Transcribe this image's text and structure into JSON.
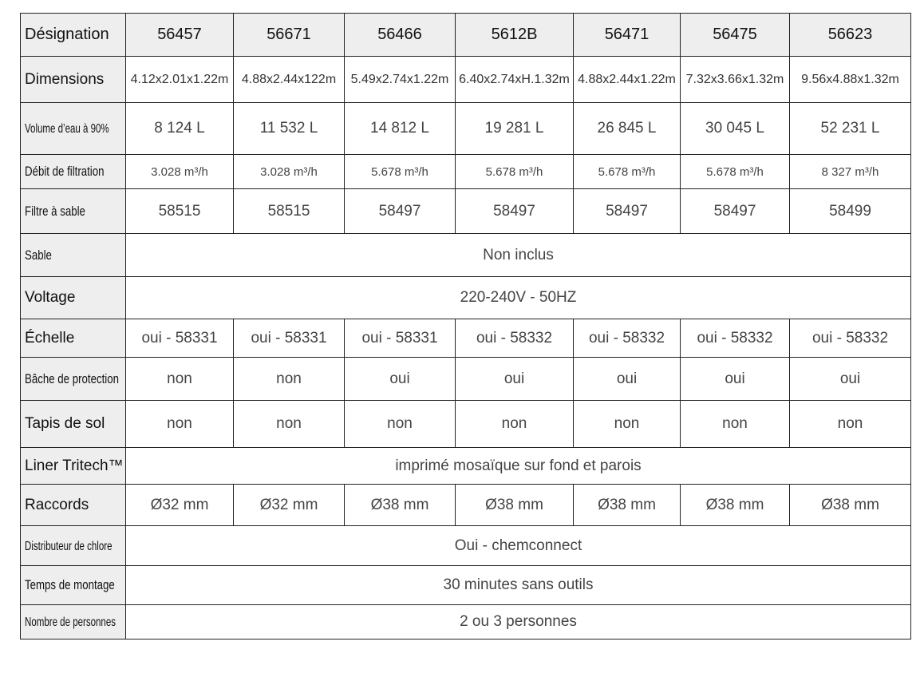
{
  "table": {
    "header_label": "Désignation",
    "models": [
      "56457",
      "56671",
      "56466",
      "5612B",
      "56471",
      "56475",
      "56623"
    ],
    "rows": [
      {
        "label": "Dimensions",
        "values": [
          "4.12x2.01x1.22m",
          "4.88x2.44x122m",
          "5.49x2.74x1.22m",
          "6.40x2.74xH.1.32m",
          "4.88x2.44x1.22m",
          "7.32x3.66x1.32m",
          "9.56x4.88x1.32m"
        ]
      },
      {
        "label": "Volume d’eau à 90%",
        "values": [
          "8 124 L",
          "11 532 L",
          "14 812 L",
          "19 281 L",
          "26 845 L",
          "30 045 L",
          "52 231 L"
        ]
      },
      {
        "label": "Débit de filtration",
        "values": [
          "3.028 m³/h",
          "3.028 m³/h",
          "5.678 m³/h",
          "5.678 m³/h",
          "5.678 m³/h",
          "5.678 m³/h",
          "8 327 m³/h"
        ]
      },
      {
        "label": "Filtre à sable",
        "values": [
          "58515",
          "58515",
          "58497",
          "58497",
          "58497",
          "58497",
          "58499"
        ]
      },
      {
        "label": "Sable",
        "merged": "Non inclus"
      },
      {
        "label": "Voltage",
        "merged": "220-240V - 50HZ"
      },
      {
        "label": "Échelle",
        "values": [
          "oui - 58331",
          "oui - 58331",
          "oui - 58331",
          "oui - 58332",
          "oui - 58332",
          "oui - 58332",
          "oui - 58332"
        ]
      },
      {
        "label": "Bâche de protection",
        "values": [
          "non",
          "non",
          "oui",
          "oui",
          "oui",
          "oui",
          "oui"
        ]
      },
      {
        "label": "Tapis de sol",
        "values": [
          "non",
          "non",
          "non",
          "non",
          "non",
          "non",
          "non"
        ]
      },
      {
        "label": "Liner Tritech™",
        "merged": "imprimé mosaïque sur fond et parois"
      },
      {
        "label": "Raccords",
        "values": [
          "Ø32 mm",
          "Ø32 mm",
          "Ø38 mm",
          "Ø38 mm",
          "Ø38 mm",
          "Ø38 mm",
          "Ø38 mm"
        ]
      },
      {
        "label": "Distributeur de chlore",
        "merged": "Oui - chemconnect"
      },
      {
        "label": "Temps de montage",
        "merged": "30 minutes sans outils"
      },
      {
        "label": "Nombre de personnes",
        "merged": "2 ou 3 personnes"
      }
    ]
  }
}
